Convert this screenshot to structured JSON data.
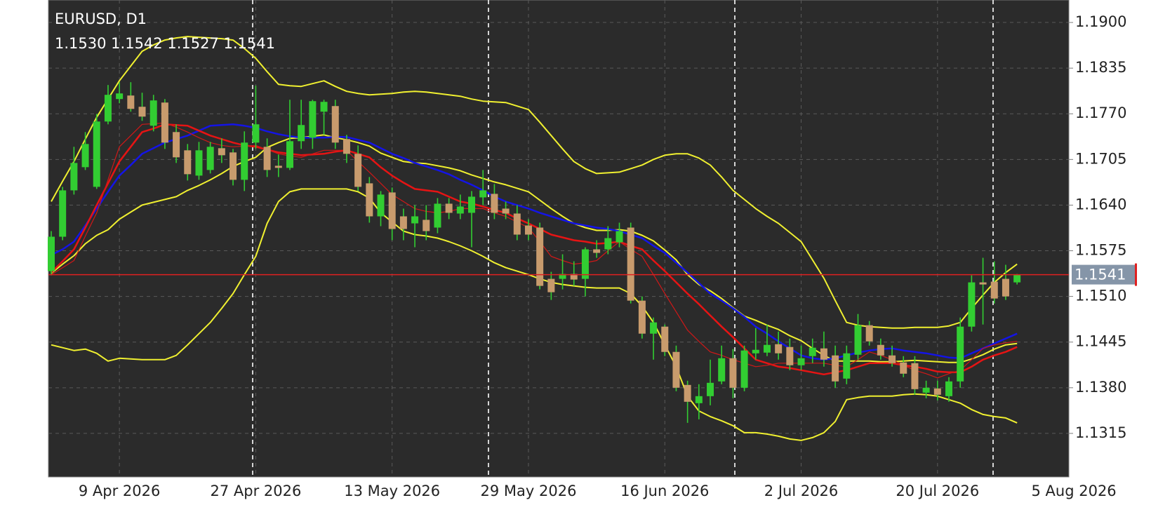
{
  "chart_data": {
    "type": "candlestick",
    "title": "EURUSD, D1",
    "categories": [
      null,
      null,
      null,
      null,
      null,
      null,
      "9 Apr 2026",
      null,
      null,
      null,
      null,
      null,
      null,
      null,
      null,
      null,
      null,
      null,
      "27 Apr 2026",
      null,
      null,
      null,
      null,
      null,
      null,
      null,
      null,
      null,
      null,
      null,
      "13 May 2026",
      null,
      null,
      null,
      null,
      null,
      null,
      null,
      null,
      null,
      null,
      null,
      "29 May 2026",
      null,
      null,
      null,
      null,
      null,
      null,
      null,
      null,
      null,
      null,
      null,
      "16 Jun 2026",
      null,
      null,
      null,
      null,
      null,
      null,
      null,
      null,
      null,
      null,
      null,
      "2 Jul 2026",
      null,
      null,
      null,
      null,
      null,
      null,
      null,
      null,
      null,
      null,
      null,
      "20 Jul 2026",
      null,
      null,
      null,
      null,
      null,
      null,
      null,
      null,
      null,
      null,
      null,
      "5 Aug 2026"
    ],
    "open": [
      1.1546,
      1.1595,
      1.1661,
      1.1694,
      1.1666,
      1.1759,
      1.1791,
      1.1796,
      1.178,
      1.1753,
      1.1786,
      1.1744,
      1.1718,
      1.1682,
      1.169,
      1.1721,
      1.1715,
      1.1676,
      1.1729,
      1.1723,
      1.1696,
      1.1693,
      1.1731,
      1.1736,
      1.1773,
      1.1781,
      1.1734,
      1.1713,
      1.1671,
      1.1624,
      1.1658,
      1.1624,
      1.1614,
      1.1619,
      1.1608,
      1.1642,
      1.1628,
      1.1629,
      1.1651,
      1.1656,
      1.1635,
      1.1628,
      1.1611,
      1.1608,
      1.1535,
      1.1535,
      1.1542,
      1.1535,
      1.1577,
      1.1577,
      1.1587,
      1.1608,
      1.1504,
      1.1457,
      1.1467,
      1.1431,
      1.1384,
      1.1358,
      1.1368,
      1.1389,
      1.1422,
      1.138,
      1.1429,
      1.143,
      1.1442,
      1.1438,
      1.1412,
      1.1425,
      1.1436,
      1.1426,
      1.1393,
      1.1427,
      1.1469,
      1.1441,
      1.1426,
      1.1416,
      1.1415,
      1.1373,
      1.1379,
      1.1368,
      1.1389,
      1.1467,
      1.153,
      1.1531,
      1.1535,
      1.153,
      null,
      null,
      null,
      null,
      null
    ],
    "high": [
      1.1603,
      1.1666,
      1.1723,
      1.1744,
      1.177,
      1.1811,
      1.1815,
      1.1815,
      1.18,
      1.1797,
      1.1791,
      1.1755,
      1.1727,
      1.173,
      1.173,
      1.1735,
      1.172,
      1.1745,
      1.181,
      1.1735,
      1.1712,
      1.179,
      1.179,
      1.179,
      1.179,
      1.179,
      1.174,
      1.1725,
      1.168,
      1.166,
      1.1665,
      1.1635,
      1.164,
      1.164,
      1.165,
      1.165,
      1.1655,
      1.166,
      1.169,
      1.167,
      1.1645,
      1.164,
      1.162,
      1.1615,
      1.1545,
      1.157,
      1.156,
      1.158,
      1.159,
      1.161,
      1.1615,
      1.1615,
      1.151,
      1.148,
      1.147,
      1.144,
      1.139,
      1.1385,
      1.142,
      1.144,
      1.1435,
      1.144,
      1.1465,
      1.147,
      1.146,
      1.145,
      1.144,
      1.145,
      1.146,
      1.144,
      1.144,
      1.1485,
      1.1475,
      1.145,
      1.144,
      1.1425,
      1.1425,
      1.139,
      1.139,
      1.1395,
      1.148,
      1.154,
      1.1565,
      1.156,
      1.1555,
      1.1542,
      null,
      null,
      null,
      null,
      null
    ],
    "low": [
      1.154,
      1.159,
      1.1655,
      1.169,
      1.1663,
      1.1755,
      1.1785,
      1.1773,
      1.176,
      1.1745,
      1.172,
      1.17,
      1.1675,
      1.1676,
      1.1685,
      1.17,
      1.1668,
      1.166,
      1.172,
      1.168,
      1.168,
      1.169,
      1.172,
      1.172,
      1.174,
      1.172,
      1.17,
      1.166,
      1.1615,
      1.161,
      1.159,
      1.159,
      1.158,
      1.159,
      1.16,
      1.162,
      1.162,
      1.158,
      1.164,
      1.162,
      1.162,
      1.159,
      1.159,
      1.152,
      1.1505,
      1.152,
      1.1525,
      1.151,
      1.1565,
      1.157,
      1.158,
      1.15,
      1.145,
      1.142,
      1.1425,
      1.1375,
      1.133,
      1.1335,
      1.1355,
      1.1385,
      1.1365,
      1.1375,
      1.142,
      1.1425,
      1.142,
      1.1405,
      1.1405,
      1.1415,
      1.141,
      1.138,
      1.1385,
      1.142,
      1.144,
      1.142,
      1.141,
      1.1395,
      1.137,
      1.1365,
      1.1362,
      1.136,
      1.138,
      1.146,
      1.147,
      1.15,
      1.1505,
      1.1527,
      null,
      null,
      null,
      null,
      null
    ],
    "close": [
      1.1595,
      1.1661,
      1.17,
      1.1727,
      1.1759,
      1.1797,
      1.1799,
      1.1777,
      1.1766,
      1.1789,
      1.1729,
      1.1708,
      1.1684,
      1.1718,
      1.1723,
      1.1711,
      1.1676,
      1.1729,
      1.1755,
      1.169,
      1.1693,
      1.1731,
      1.1754,
      1.1788,
      1.1787,
      1.1729,
      1.1713,
      1.1666,
      1.1624,
      1.1655,
      1.1606,
      1.1606,
      1.1624,
      1.1603,
      1.1642,
      1.1629,
      1.1638,
      1.1652,
      1.1661,
      1.1629,
      1.1628,
      1.1598,
      1.1598,
      1.1525,
      1.1516,
      1.1542,
      1.1534,
      1.1577,
      1.1572,
      1.1593,
      1.1603,
      1.1504,
      1.1457,
      1.1473,
      1.1431,
      1.138,
      1.136,
      1.1368,
      1.1387,
      1.1422,
      1.138,
      1.1433,
      1.1434,
      1.1441,
      1.1429,
      1.1412,
      1.1422,
      1.1437,
      1.142,
      1.1389,
      1.1429,
      1.1469,
      1.1446,
      1.1426,
      1.1415,
      1.14,
      1.1378,
      1.138,
      1.137,
      1.1389,
      1.1467,
      1.153,
      1.1527,
      1.1507,
      1.151,
      1.1541,
      null,
      null,
      null,
      null,
      null
    ],
    "value_labels": {
      "open": "1.1530",
      "high": "1.1542",
      "low": "1.1527",
      "close": "1.1541"
    },
    "up_color": "#32cd32",
    "down_color": "#c89b6d",
    "wick_color": "#32cd32",
    "overlays": [
      {
        "color": "#f0f030",
        "width": 2,
        "values": [
          1.1645,
          1.1674,
          1.1702,
          1.1734,
          1.1765,
          1.1791,
          1.1817,
          1.1838,
          1.1859,
          1.1868,
          1.1875,
          1.1878,
          1.188,
          1.1879,
          1.1878,
          1.1877,
          1.1875,
          1.1863,
          1.1849,
          1.183,
          1.1812,
          1.181,
          1.1809,
          1.1813,
          1.1817,
          1.1809,
          1.1802,
          1.1799,
          1.1797,
          1.1798,
          1.1799,
          1.1801,
          1.1802,
          1.1801,
          1.1799,
          1.1797,
          1.1795,
          1.1791,
          1.1788,
          1.1787,
          1.1786,
          1.1781,
          1.1776,
          1.1758,
          1.1739,
          1.172,
          1.1702,
          1.1692,
          1.1685,
          1.1686,
          1.1687,
          1.1692,
          1.1697,
          1.1705,
          1.1711,
          1.1713,
          1.1713,
          1.1707,
          1.1697,
          1.168,
          1.1661,
          1.1648,
          1.1635,
          1.1624,
          1.1614,
          1.1601,
          1.1588,
          1.1562,
          1.1536,
          1.1504,
          1.1473,
          1.1469,
          1.1467,
          1.1466,
          1.1465,
          1.1465,
          1.1466,
          1.1466,
          1.1466,
          1.1468,
          1.1473,
          1.1493,
          1.1512,
          1.153,
          1.1544,
          1.1556,
          null,
          null,
          null,
          null,
          null
        ]
      },
      {
        "color": "#f0f030",
        "width": 2,
        "values": [
          1.1441,
          1.1437,
          1.1433,
          1.1435,
          1.1429,
          1.1418,
          1.1422,
          1.1421,
          1.142,
          1.142,
          1.142,
          1.1426,
          1.1441,
          1.1457,
          1.1473,
          1.1493,
          1.1514,
          1.1541,
          1.1567,
          1.1614,
          1.1645,
          1.1659,
          1.1663,
          1.1663,
          1.1663,
          1.1663,
          1.1663,
          1.1659,
          1.165,
          1.1629,
          1.1616,
          1.1603,
          1.1598,
          1.1596,
          1.1593,
          1.1588,
          1.1582,
          1.1575,
          1.1567,
          1.1558,
          1.1551,
          1.1546,
          1.1541,
          1.1535,
          1.153,
          1.1527,
          1.1525,
          1.1523,
          1.1522,
          1.1522,
          1.1522,
          1.1514,
          1.1496,
          1.1473,
          1.1441,
          1.141,
          1.1368,
          1.1347,
          1.1339,
          1.1333,
          1.1326,
          1.1316,
          1.1316,
          1.1314,
          1.1311,
          1.1307,
          1.1305,
          1.1309,
          1.1316,
          1.1332,
          1.1363,
          1.1366,
          1.1368,
          1.1368,
          1.1368,
          1.137,
          1.1371,
          1.137,
          1.1368,
          1.1363,
          1.1358,
          1.1349,
          1.1342,
          1.1339,
          1.1337,
          1.133,
          null,
          null,
          null,
          null,
          null
        ]
      },
      {
        "color": "#f0f030",
        "width": 2,
        "values": [
          1.1543,
          1.1556,
          1.1568,
          1.1585,
          1.1597,
          1.1605,
          1.162,
          1.163,
          1.164,
          1.1644,
          1.1648,
          1.1652,
          1.1661,
          1.1668,
          1.1676,
          1.1685,
          1.1695,
          1.1702,
          1.1708,
          1.1722,
          1.1729,
          1.1735,
          1.1736,
          1.1738,
          1.174,
          1.1736,
          1.1733,
          1.1729,
          1.1724,
          1.1714,
          1.1708,
          1.1702,
          1.17,
          1.1699,
          1.1696,
          1.1693,
          1.1689,
          1.1683,
          1.1678,
          1.1673,
          1.1669,
          1.1664,
          1.1659,
          1.1647,
          1.1635,
          1.1624,
          1.1614,
          1.1608,
          1.1604,
          1.1604,
          1.1605,
          1.1603,
          1.1597,
          1.1589,
          1.1576,
          1.1562,
          1.1541,
          1.1527,
          1.1518,
          1.1507,
          1.1494,
          1.1482,
          1.1476,
          1.1469,
          1.1463,
          1.1454,
          1.1447,
          1.1436,
          1.1426,
          1.1418,
          1.1418,
          1.1418,
          1.1418,
          1.1417,
          1.1417,
          1.1418,
          1.1419,
          1.1418,
          1.1417,
          1.1416,
          1.1416,
          1.1421,
          1.1427,
          1.1435,
          1.1441,
          1.1443,
          null,
          null,
          null,
          null,
          null
        ]
      },
      {
        "color": "#1414e6",
        "width": 2.5,
        "values": [
          1.1569,
          1.1577,
          1.1588,
          1.1611,
          1.1635,
          1.1659,
          1.1682,
          1.1697,
          1.1713,
          1.1721,
          1.1729,
          1.1734,
          1.1739,
          1.1746,
          1.1753,
          1.1754,
          1.1755,
          1.1753,
          1.175,
          1.1745,
          1.1741,
          1.1738,
          1.1736,
          1.1736,
          1.1736,
          1.1737,
          1.1737,
          1.1733,
          1.1729,
          1.1721,
          1.1713,
          1.1707,
          1.17,
          1.1695,
          1.169,
          1.1684,
          1.1676,
          1.1669,
          1.1661,
          1.1652,
          1.1645,
          1.164,
          1.1635,
          1.1629,
          1.1624,
          1.1619,
          1.1614,
          1.1611,
          1.1608,
          1.1606,
          1.1603,
          1.1598,
          1.1593,
          1.1582,
          1.1572,
          1.1558,
          1.1544,
          1.1529,
          1.1514,
          1.1504,
          1.1493,
          1.1481,
          1.1467,
          1.1457,
          1.1446,
          1.1436,
          1.1426,
          1.1422,
          1.142,
          1.1422,
          1.1426,
          1.143,
          1.1433,
          1.1435,
          1.1436,
          1.1433,
          1.1431,
          1.1429,
          1.1426,
          1.1423,
          1.1422,
          1.1429,
          1.1436,
          1.1443,
          1.145,
          1.1457,
          null,
          null,
          null,
          null,
          null
        ]
      },
      {
        "color": "#e61414",
        "width": 2.5,
        "values": [
          1.1544,
          1.156,
          1.1577,
          1.1608,
          1.164,
          1.1671,
          1.1702,
          1.1723,
          1.1744,
          1.1749,
          1.1755,
          1.1754,
          1.1753,
          1.1746,
          1.1739,
          1.1734,
          1.1729,
          1.1725,
          1.1723,
          1.1719,
          1.1715,
          1.1713,
          1.1711,
          1.1712,
          1.1713,
          1.1716,
          1.1718,
          1.1713,
          1.1708,
          1.1694,
          1.1682,
          1.1672,
          1.1663,
          1.1661,
          1.1659,
          1.1652,
          1.1645,
          1.1642,
          1.1638,
          1.1633,
          1.1629,
          1.1621,
          1.1614,
          1.1606,
          1.1598,
          1.1594,
          1.159,
          1.1588,
          1.1585,
          1.1586,
          1.1588,
          1.1582,
          1.1577,
          1.1561,
          1.1546,
          1.153,
          1.1514,
          1.1499,
          1.1483,
          1.1467,
          1.1452,
          1.1436,
          1.142,
          1.1415,
          1.141,
          1.1408,
          1.1405,
          1.1402,
          1.1399,
          1.1402,
          1.1405,
          1.141,
          1.1415,
          1.1415,
          1.1415,
          1.1412,
          1.141,
          1.1407,
          1.1403,
          1.1402,
          1.1402,
          1.141,
          1.142,
          1.1426,
          1.1431,
          1.1438,
          null,
          null,
          null,
          null,
          null
        ]
      },
      {
        "color": "#d01818",
        "width": 1.2,
        "values": [
          1.1541,
          1.1551,
          1.1561,
          1.1596,
          1.1629,
          1.1676,
          1.1723,
          1.1739,
          1.1755,
          1.1756,
          1.1757,
          1.1751,
          1.1744,
          1.1736,
          1.1729,
          1.1725,
          1.1723,
          1.1724,
          1.1725,
          1.1719,
          1.1713,
          1.171,
          1.1708,
          1.1713,
          1.1718,
          1.1718,
          1.1718,
          1.1702,
          1.1687,
          1.1671,
          1.1655,
          1.1645,
          1.1635,
          1.1631,
          1.1629,
          1.1631,
          1.1635,
          1.1635,
          1.1635,
          1.1629,
          1.1624,
          1.1616,
          1.1608,
          1.1588,
          1.1567,
          1.1561,
          1.1556,
          1.1558,
          1.1561,
          1.1575,
          1.1588,
          1.1577,
          1.1567,
          1.1541,
          1.1514,
          1.1488,
          1.1462,
          1.1446,
          1.1431,
          1.1426,
          1.142,
          1.1415,
          1.141,
          1.1412,
          1.1415,
          1.1415,
          1.1415,
          1.1415,
          1.1415,
          1.1412,
          1.141,
          1.142,
          1.1431,
          1.1426,
          1.142,
          1.1412,
          1.1405,
          1.14,
          1.1394,
          1.14,
          1.1405,
          1.142,
          1.1436,
          1.1441,
          1.1444,
          1.1446,
          null,
          null,
          null,
          null,
          null
        ]
      }
    ],
    "price_line_color": "#e02020",
    "ylim": [
      1.1253,
      1.1932
    ],
    "yticks": [
      1.1315,
      {
        "value": 1.138,
        "label": "1.1380"
      },
      1.1445,
      {
        "value": 1.151,
        "label": "1.1510"
      },
      1.1575,
      {
        "value": 1.164,
        "label": "1.1640"
      },
      1.1705,
      {
        "value": 1.177,
        "label": "1.1770"
      },
      1.1835,
      {
        "value": 1.19,
        "label": "1.1900"
      }
    ],
    "grid": true
  }
}
